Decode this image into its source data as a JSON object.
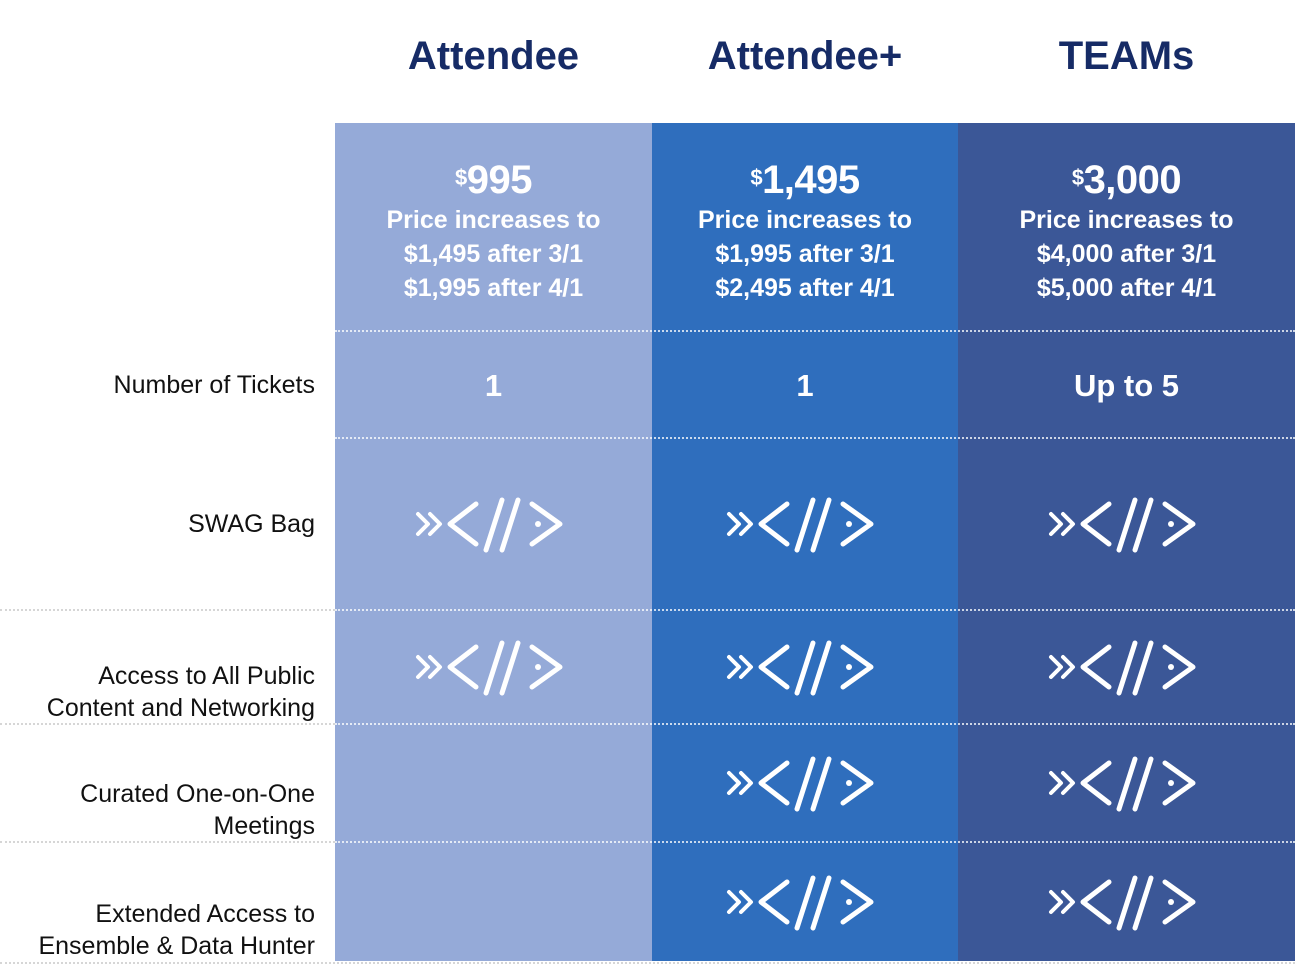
{
  "plans": [
    {
      "name": "Attendee",
      "price_symbol": "$",
      "price_amount": "995",
      "price_note_line1": "Price increases to",
      "price_note_line2": "$1,495 after 3/1",
      "price_note_line3": "$1,995 after 4/1",
      "tickets": "1",
      "color": "#95aad8"
    },
    {
      "name": "Attendee+",
      "price_symbol": "$",
      "price_amount": "1,495",
      "price_note_line1": "Price increases to",
      "price_note_line2": "$1,995 after 3/1",
      "price_note_line3": "$2,495 after 4/1",
      "tickets": "1",
      "color": "#2f6ebd"
    },
    {
      "name": "TEAMs",
      "price_symbol": "$",
      "price_amount": "3,000",
      "price_note_line1": "Price increases to",
      "price_note_line2": "$4,000 after 3/1",
      "price_note_line3": "$5,000 after 4/1",
      "tickets": "Up to 5",
      "color": "#3b5797"
    }
  ],
  "rows": [
    {
      "label_line1": "Number of Tickets",
      "label_line2": ""
    },
    {
      "label_line1": "SWAG Bag",
      "label_line2": ""
    },
    {
      "label_line1": "Access to All Public",
      "label_line2": "Content and Networking",
      "included": [
        true,
        true,
        true
      ]
    },
    {
      "label_line1": "Curated One-on-One",
      "label_line2": "Meetings",
      "included": [
        false,
        true,
        true
      ]
    },
    {
      "label_line1": "Extended Access to",
      "label_line2": "Ensemble & Data Hunter",
      "included": [
        false,
        true,
        true
      ]
    }
  ],
  "included_icon": "brand-code-mark-icon",
  "title_color": "#162b66"
}
